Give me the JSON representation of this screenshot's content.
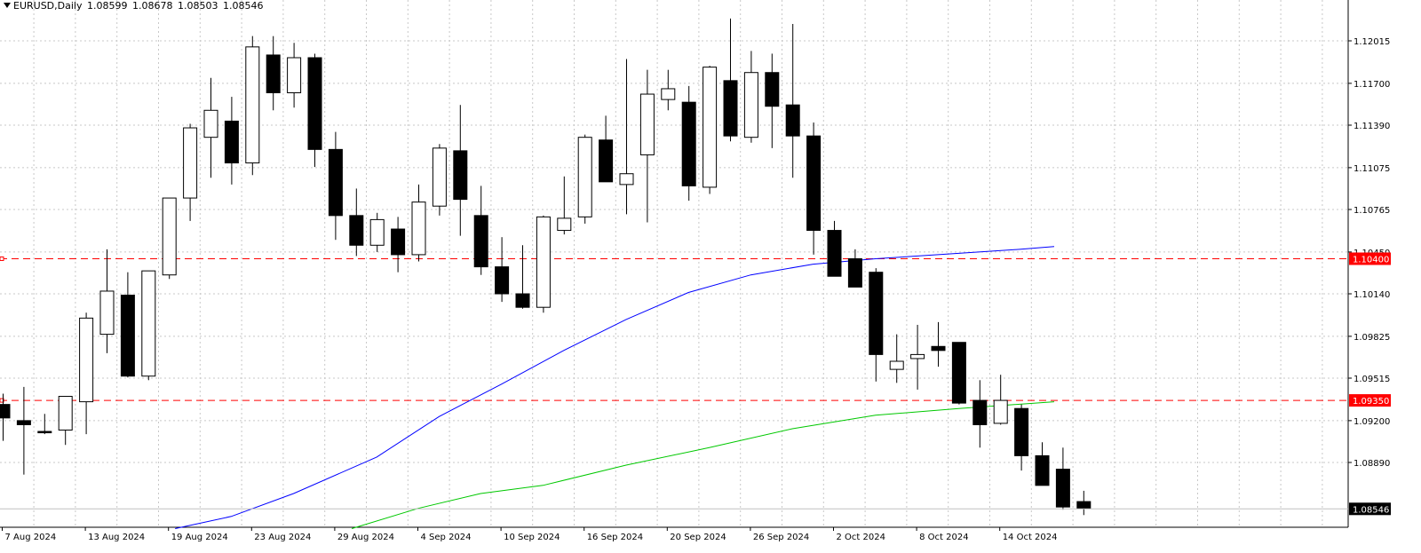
{
  "header": {
    "symbol": "EURUSD,Daily",
    "open": "1.08599",
    "high": "1.08678",
    "low": "1.08503",
    "close": "1.08546"
  },
  "chart_data": {
    "type": "candlestick",
    "title": "EURUSD,Daily",
    "ylim": [
      1.084,
      1.123
    ],
    "grid": true,
    "y_ticks": [
      "1.12015",
      "1.11700",
      "1.11390",
      "1.11075",
      "1.10765",
      "1.10450",
      "1.10140",
      "1.09825",
      "1.09515",
      "1.09200",
      "1.08890"
    ],
    "x_ticks": [
      {
        "label": "7 Aug 2024",
        "index": 0
      },
      {
        "label": "13 Aug 2024",
        "index": 4
      },
      {
        "label": "19 Aug 2024",
        "index": 8
      },
      {
        "label": "23 Aug 2024",
        "index": 12
      },
      {
        "label": "29 Aug 2024",
        "index": 16
      },
      {
        "label": "4 Sep 2024",
        "index": 20
      },
      {
        "label": "10 Sep 2024",
        "index": 24
      },
      {
        "label": "16 Sep 2024",
        "index": 28
      },
      {
        "label": "20 Sep 2024",
        "index": 32
      },
      {
        "label": "26 Sep 2024",
        "index": 36
      },
      {
        "label": "2 Oct 2024",
        "index": 40
      },
      {
        "label": "8 Oct 2024",
        "index": 44
      },
      {
        "label": "14 Oct 2024",
        "index": 48
      }
    ],
    "candles": [
      {
        "o": 1.0932,
        "h": 1.094,
        "l": 1.0905,
        "c": 1.0922
      },
      {
        "o": 1.092,
        "h": 1.0945,
        "l": 1.088,
        "c": 1.0917
      },
      {
        "o": 1.0912,
        "h": 1.0925,
        "l": 1.091,
        "c": 1.0911
      },
      {
        "o": 1.0913,
        "h": 1.0935,
        "l": 1.0902,
        "c": 1.0938
      },
      {
        "o": 1.0934,
        "h": 1.1,
        "l": 1.091,
        "c": 1.0996
      },
      {
        "o": 1.0984,
        "h": 1.1047,
        "l": 1.097,
        "c": 1.1016
      },
      {
        "o": 1.1013,
        "h": 1.103,
        "l": 1.0952,
        "c": 1.0953
      },
      {
        "o": 1.0953,
        "h": 1.103,
        "l": 1.095,
        "c": 1.1031
      },
      {
        "o": 1.1028,
        "h": 1.1085,
        "l": 1.1025,
        "c": 1.1085
      },
      {
        "o": 1.1085,
        "h": 1.114,
        "l": 1.1068,
        "c": 1.1137
      },
      {
        "o": 1.113,
        "h": 1.1174,
        "l": 1.11,
        "c": 1.115
      },
      {
        "o": 1.1142,
        "h": 1.116,
        "l": 1.1095,
        "c": 1.1111
      },
      {
        "o": 1.1111,
        "h": 1.1205,
        "l": 1.1102,
        "c": 1.1197
      },
      {
        "o": 1.1191,
        "h": 1.1205,
        "l": 1.115,
        "c": 1.1163
      },
      {
        "o": 1.1163,
        "h": 1.12,
        "l": 1.1152,
        "c": 1.1189
      },
      {
        "o": 1.1189,
        "h": 1.1192,
        "l": 1.1108,
        "c": 1.1121
      },
      {
        "o": 1.1121,
        "h": 1.1134,
        "l": 1.1054,
        "c": 1.1072
      },
      {
        "o": 1.1072,
        "h": 1.1092,
        "l": 1.1042,
        "c": 1.105
      },
      {
        "o": 1.105,
        "h": 1.1074,
        "l": 1.1045,
        "c": 1.1069
      },
      {
        "o": 1.1062,
        "h": 1.1071,
        "l": 1.103,
        "c": 1.1043
      },
      {
        "o": 1.1043,
        "h": 1.1095,
        "l": 1.1038,
        "c": 1.1082
      },
      {
        "o": 1.1079,
        "h": 1.1125,
        "l": 1.1072,
        "c": 1.1122
      },
      {
        "o": 1.112,
        "h": 1.1154,
        "l": 1.1057,
        "c": 1.1084
      },
      {
        "o": 1.1072,
        "h": 1.1094,
        "l": 1.1028,
        "c": 1.1034
      },
      {
        "o": 1.1034,
        "h": 1.1056,
        "l": 1.1008,
        "c": 1.1014
      },
      {
        "o": 1.1014,
        "h": 1.105,
        "l": 1.1003,
        "c": 1.1004
      },
      {
        "o": 1.1004,
        "h": 1.1072,
        "l": 1.1,
        "c": 1.1071
      },
      {
        "o": 1.1061,
        "h": 1.1101,
        "l": 1.1058,
        "c": 1.107
      },
      {
        "o": 1.1071,
        "h": 1.1132,
        "l": 1.1066,
        "c": 1.113
      },
      {
        "o": 1.1128,
        "h": 1.1146,
        "l": 1.11,
        "c": 1.1097
      },
      {
        "o": 1.1095,
        "h": 1.1188,
        "l": 1.1073,
        "c": 1.1103
      },
      {
        "o": 1.1117,
        "h": 1.118,
        "l": 1.1067,
        "c": 1.1162
      },
      {
        "o": 1.1158,
        "h": 1.118,
        "l": 1.115,
        "c": 1.1166
      },
      {
        "o": 1.1156,
        "h": 1.1168,
        "l": 1.1083,
        "c": 1.1094
      },
      {
        "o": 1.1093,
        "h": 1.1183,
        "l": 1.1088,
        "c": 1.1182
      },
      {
        "o": 1.1172,
        "h": 1.1218,
        "l": 1.1127,
        "c": 1.1131
      },
      {
        "o": 1.113,
        "h": 1.1194,
        "l": 1.1126,
        "c": 1.1178
      },
      {
        "o": 1.1178,
        "h": 1.1192,
        "l": 1.1122,
        "c": 1.1153
      },
      {
        "o": 1.1154,
        "h": 1.1214,
        "l": 1.11,
        "c": 1.1131
      },
      {
        "o": 1.1131,
        "h": 1.1141,
        "l": 1.1043,
        "c": 1.1061
      },
      {
        "o": 1.1061,
        "h": 1.1068,
        "l": 1.1027,
        "c": 1.1027
      }
    ],
    "candles_more": [
      {
        "o": 1.104,
        "h": 1.1047,
        "l": 1.1021,
        "c": 1.1019
      },
      {
        "o": 1.103,
        "h": 1.1033,
        "l": 1.0949,
        "c": 1.0969
      },
      {
        "o": 1.0958,
        "h": 1.0984,
        "l": 1.0948,
        "c": 1.0964
      },
      {
        "o": 1.0966,
        "h": 1.0991,
        "l": 1.0943,
        "c": 1.0969
      },
      {
        "o": 1.0975,
        "h": 1.0993,
        "l": 1.096,
        "c": 1.0972
      },
      {
        "o": 1.0978,
        "h": 1.0969,
        "l": 1.0932,
        "c": 1.0933
      },
      {
        "o": 1.0935,
        "h": 1.095,
        "l": 1.09,
        "c": 1.0917
      },
      {
        "o": 1.0918,
        "h": 1.0954,
        "l": 1.0917,
        "c": 1.0935
      },
      {
        "o": 1.0929,
        "h": 1.0932,
        "l": 1.0883,
        "c": 1.0894
      },
      {
        "o": 1.0894,
        "h": 1.0904,
        "l": 1.088,
        "c": 1.0872
      },
      {
        "o": 1.0884,
        "h": 1.09,
        "l": 1.0854,
        "c": 1.0856
      },
      {
        "o": 1.086,
        "h": 1.0868,
        "l": 1.085,
        "c": 1.0855
      }
    ],
    "ma_blue": [
      {
        "i": 8.3,
        "v": 1.084
      },
      {
        "i": 11,
        "v": 1.0849
      },
      {
        "i": 14,
        "v": 1.0866
      },
      {
        "i": 18,
        "v": 1.0893
      },
      {
        "i": 21,
        "v": 1.0923
      },
      {
        "i": 24,
        "v": 1.0947
      },
      {
        "i": 27,
        "v": 1.0972
      },
      {
        "i": 30,
        "v": 1.0995
      },
      {
        "i": 33,
        "v": 1.1015
      },
      {
        "i": 36,
        "v": 1.1028
      },
      {
        "i": 39,
        "v": 1.1036
      },
      {
        "i": 42,
        "v": 1.104
      },
      {
        "i": 46,
        "v": 1.1044
      },
      {
        "i": 49,
        "v": 1.1047
      },
      {
        "i": 50.6,
        "v": 1.1049
      }
    ],
    "ma_green": [
      {
        "i": 16.8,
        "v": 1.084
      },
      {
        "i": 20,
        "v": 1.0855
      },
      {
        "i": 23,
        "v": 1.0866
      },
      {
        "i": 26,
        "v": 1.0872
      },
      {
        "i": 30,
        "v": 1.0887
      },
      {
        "i": 34,
        "v": 1.09
      },
      {
        "i": 38,
        "v": 1.0914
      },
      {
        "i": 42,
        "v": 1.0924
      },
      {
        "i": 46,
        "v": 1.0929
      },
      {
        "i": 50.6,
        "v": 1.0934
      }
    ],
    "hlines": [
      {
        "value": 1.104,
        "label": "1.10400",
        "color": "#ff0000"
      },
      {
        "value": 1.0935,
        "label": "1.09350",
        "color": "#ff0000"
      }
    ],
    "current_price": {
      "value": 1.08546,
      "label": "1.08546"
    }
  }
}
